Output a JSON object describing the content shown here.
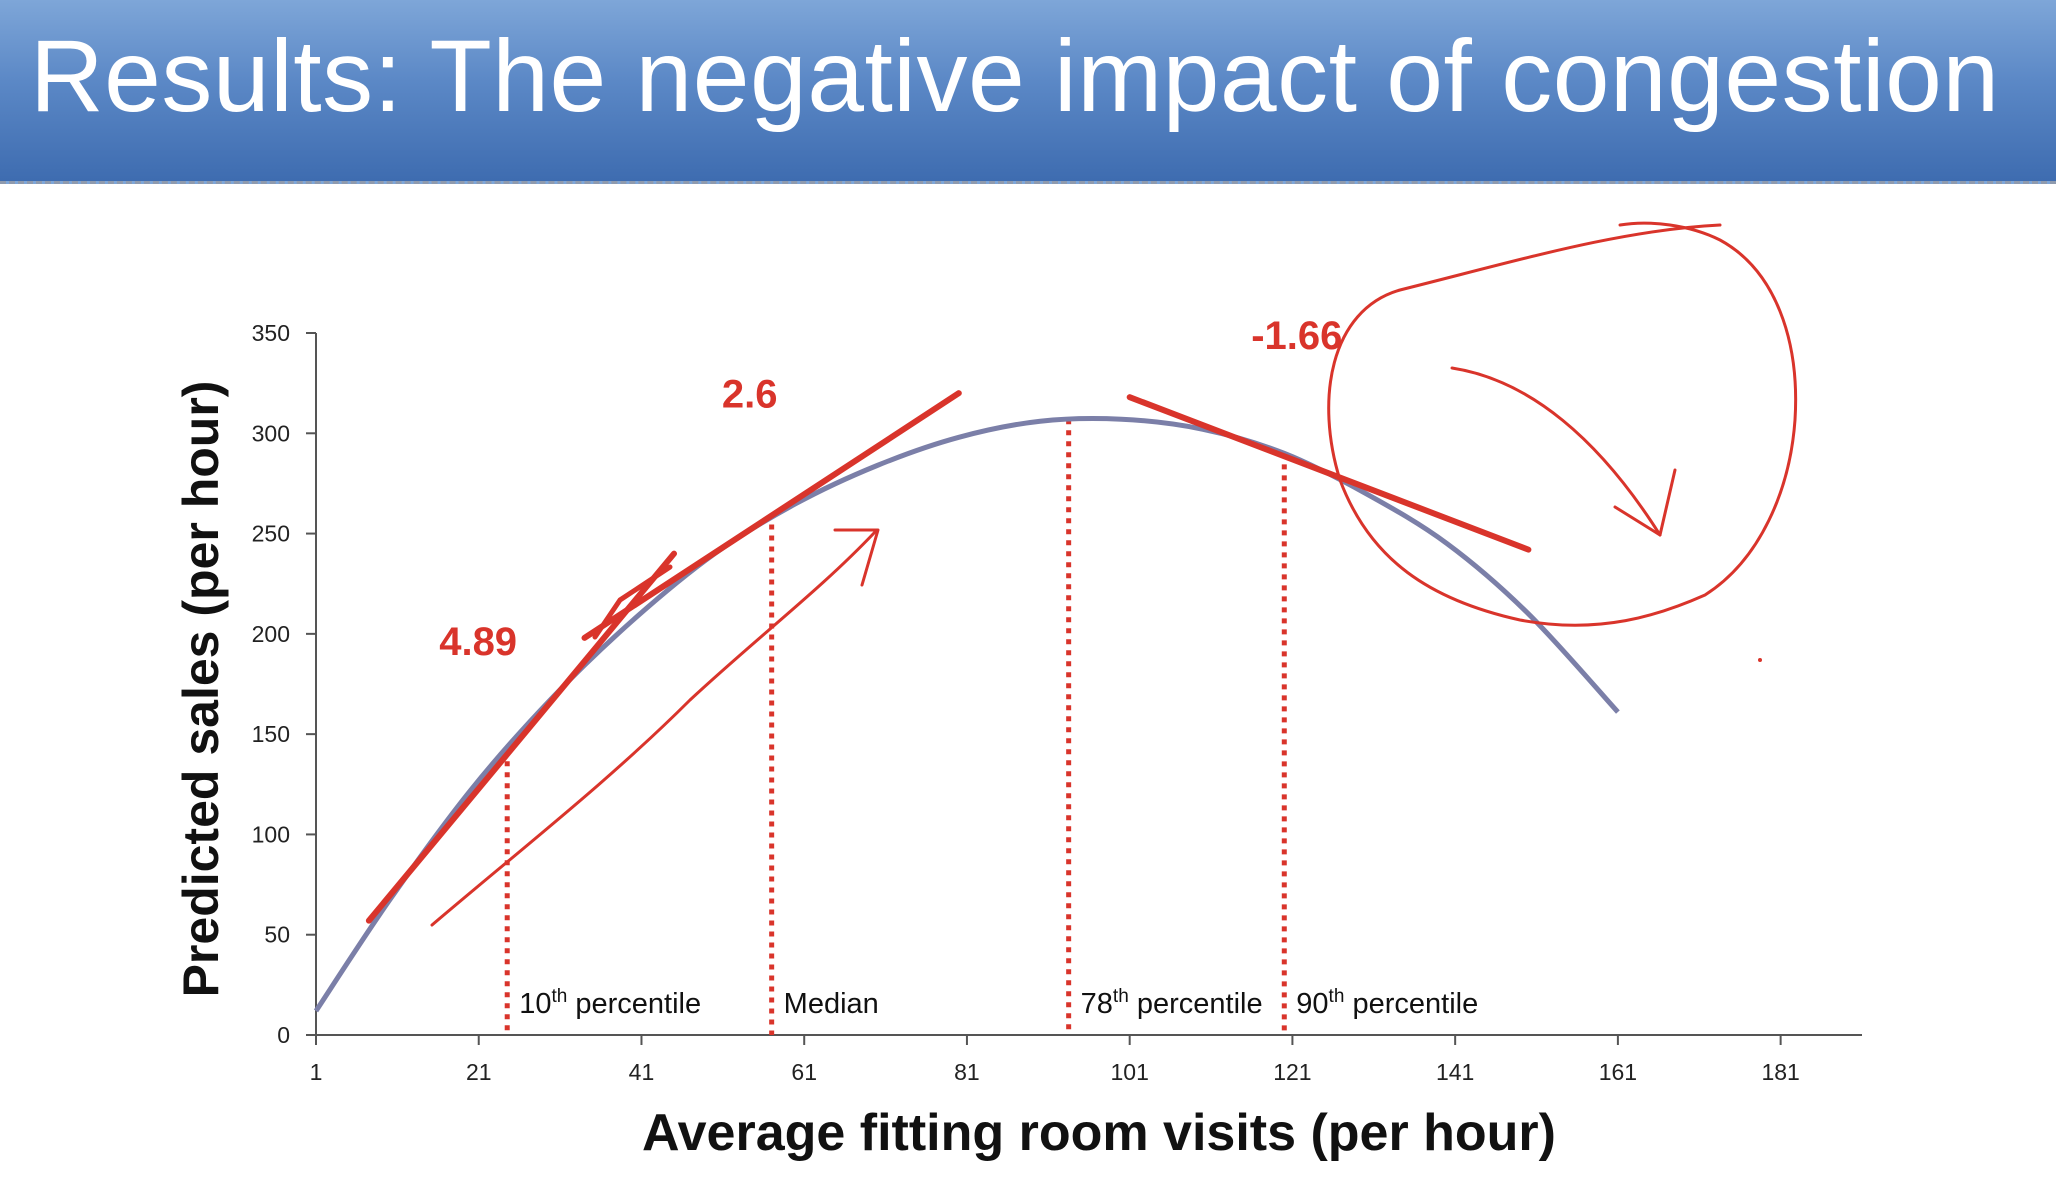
{
  "slide": {
    "title": "Results: The negative impact of congestion"
  },
  "chart_data": {
    "type": "line",
    "xlabel": "Average fitting room visits (per hour)",
    "ylabel": "Predicted sales (per hour)",
    "xlim": [
      1,
      191
    ],
    "ylim": [
      0,
      350
    ],
    "x_ticks": [
      1,
      21,
      41,
      61,
      81,
      101,
      121,
      141,
      161,
      181
    ],
    "x_tick_labels": [
      "1",
      "21",
      "41",
      "61",
      "81",
      "101",
      "121",
      "141",
      "161",
      "181"
    ],
    "y_ticks": [
      0,
      50,
      100,
      150,
      200,
      250,
      300,
      350
    ],
    "y_tick_labels": [
      "0",
      "50",
      "100",
      "150",
      "200",
      "250",
      "300",
      "350"
    ],
    "grid": false,
    "series": [
      {
        "color": "#7b7fa8",
        "x": [
          1,
          10,
          20,
          30,
          40,
          50,
          60,
          70,
          80,
          90,
          100,
          110,
          120,
          130,
          140,
          150,
          161
        ],
        "y": [
          12,
          67,
          122,
          168,
          207,
          240,
          265,
          284,
          298,
          306,
          307,
          302,
          290,
          270,
          245,
          210,
          161
        ]
      }
    ],
    "reference_lines": [
      {
        "x": 24.5,
        "top": 142,
        "label": "10",
        "sup": "th",
        "suffix": " percentile"
      },
      {
        "x": 57,
        "top": 260,
        "label": "Median",
        "sup": "",
        "suffix": ""
      },
      {
        "x": 93.5,
        "top": 307,
        "label": "78",
        "sup": "th",
        "suffix": " percentile"
      },
      {
        "x": 120,
        "top": 290,
        "label": "90",
        "sup": "th",
        "suffix": " percentile"
      }
    ],
    "slope_annotations": [
      {
        "text": "4.89",
        "x": 24,
        "y": 172,
        "x1": 7.5,
        "y1": 57,
        "x2": 45,
        "y2": 240
      },
      {
        "text": "2.6",
        "x": 57,
        "y": 293,
        "x1": 34,
        "y1": 198,
        "x2": 80,
        "y2": 320
      },
      {
        "text": "-1.66",
        "x": 124,
        "y": 317,
        "x1": 101,
        "y1": 318,
        "x2": 150,
        "y2": 242
      }
    ],
    "colors": {
      "curve": "#7b7fa8",
      "annotation": "#d9342b",
      "reference": "#d9342b"
    }
  }
}
